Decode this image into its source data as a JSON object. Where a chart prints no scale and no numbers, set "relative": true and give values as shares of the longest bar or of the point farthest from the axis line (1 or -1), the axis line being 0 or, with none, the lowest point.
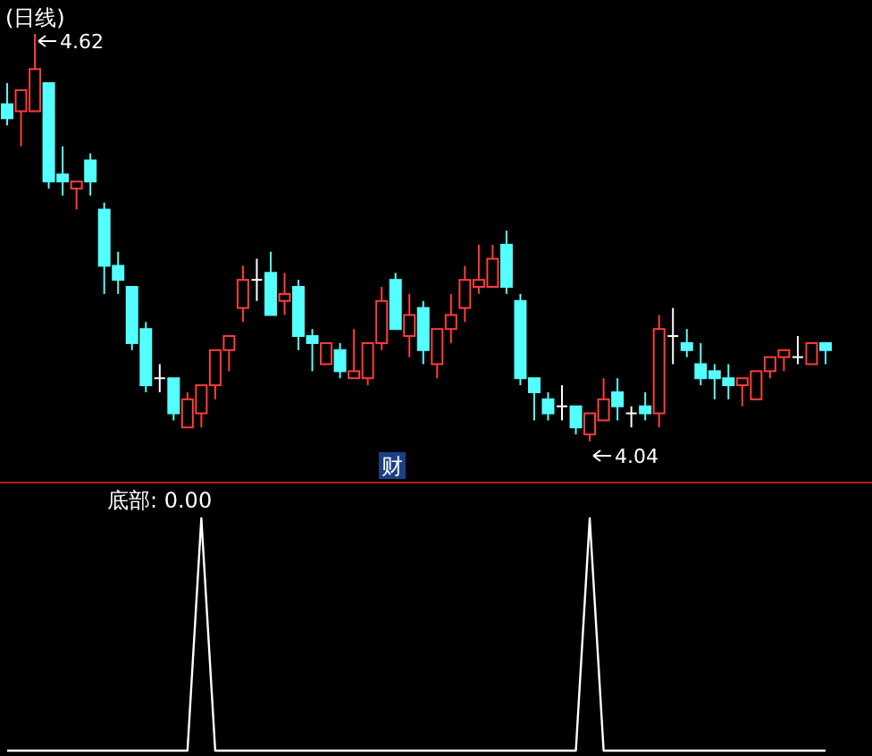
{
  "chart_data": [
    {
      "type": "candlestick",
      "title": "(日线)",
      "categories": [
        null,
        null,
        null,
        null,
        null,
        null,
        null,
        null,
        null,
        null,
        null,
        null,
        null,
        null,
        null,
        null,
        null,
        null,
        null,
        null,
        null,
        null,
        null,
        null,
        null,
        null,
        null,
        null,
        null,
        null,
        null,
        null,
        null,
        null,
        null,
        null,
        null,
        null,
        null,
        null,
        null,
        null,
        null,
        null,
        null,
        null,
        null,
        null,
        null,
        null,
        null,
        null,
        null,
        null,
        null,
        null,
        null,
        null,
        null,
        null
      ],
      "ohlc": [
        [
          4.52,
          4.55,
          4.49,
          4.5
        ],
        [
          4.51,
          4.54,
          4.46,
          4.54
        ],
        [
          4.51,
          4.62,
          4.51,
          4.57
        ],
        [
          4.55,
          4.55,
          4.4,
          4.41
        ],
        [
          4.42,
          4.46,
          4.39,
          4.41
        ],
        [
          4.4,
          4.41,
          4.37,
          4.41
        ],
        [
          4.44,
          4.45,
          4.39,
          4.41
        ],
        [
          4.37,
          4.38,
          4.25,
          4.29
        ],
        [
          4.29,
          4.31,
          4.25,
          4.27
        ],
        [
          4.26,
          4.26,
          4.17,
          4.18
        ],
        [
          4.2,
          4.21,
          4.11,
          4.12
        ],
        [
          4.13,
          4.15,
          4.11,
          4.13
        ],
        [
          4.13,
          4.13,
          4.07,
          4.08
        ],
        [
          4.06,
          4.11,
          4.06,
          4.1
        ],
        [
          4.08,
          4.12,
          4.06,
          4.12
        ],
        [
          4.12,
          4.17,
          4.1,
          4.17
        ],
        [
          4.17,
          4.19,
          4.14,
          4.19
        ],
        [
          4.23,
          4.29,
          4.21,
          4.27
        ],
        [
          4.27,
          4.3,
          4.24,
          4.27
        ],
        [
          4.28,
          4.31,
          4.22,
          4.22
        ],
        [
          4.24,
          4.28,
          4.22,
          4.25
        ],
        [
          4.26,
          4.27,
          4.17,
          4.19
        ],
        [
          4.19,
          4.2,
          4.14,
          4.18
        ],
        [
          4.15,
          4.18,
          4.15,
          4.18
        ],
        [
          4.17,
          4.18,
          4.13,
          4.14
        ],
        [
          4.13,
          4.2,
          4.13,
          4.14
        ],
        [
          4.13,
          4.18,
          4.12,
          4.18
        ],
        [
          4.18,
          4.26,
          4.17,
          4.24
        ],
        [
          4.27,
          4.28,
          4.2,
          4.2
        ],
        [
          4.19,
          4.25,
          4.16,
          4.22
        ],
        [
          4.23,
          4.24,
          4.15,
          4.17
        ],
        [
          4.15,
          4.2,
          4.13,
          4.2
        ],
        [
          4.2,
          4.25,
          4.18,
          4.22
        ],
        [
          4.23,
          4.29,
          4.21,
          4.27
        ],
        [
          4.26,
          4.32,
          4.25,
          4.27
        ],
        [
          4.26,
          4.32,
          4.26,
          4.3
        ],
        [
          4.32,
          4.34,
          4.25,
          4.26
        ],
        [
          4.24,
          4.25,
          4.12,
          4.13
        ],
        [
          4.13,
          4.13,
          4.07,
          4.11
        ],
        [
          4.1,
          4.11,
          4.07,
          4.08
        ],
        [
          4.09,
          4.12,
          4.07,
          4.09
        ],
        [
          4.09,
          4.09,
          4.05,
          4.06
        ],
        [
          4.05,
          4.08,
          4.04,
          4.08
        ],
        [
          4.07,
          4.13,
          4.07,
          4.1
        ],
        [
          4.11,
          4.13,
          4.07,
          4.09
        ],
        [
          4.08,
          4.09,
          4.06,
          4.08
        ],
        [
          4.09,
          4.11,
          4.07,
          4.08
        ],
        [
          4.08,
          4.22,
          4.06,
          4.2
        ],
        [
          4.19,
          4.23,
          4.15,
          4.19
        ],
        [
          4.18,
          4.2,
          4.16,
          4.17
        ],
        [
          4.15,
          4.18,
          4.12,
          4.13
        ],
        [
          4.14,
          4.15,
          4.1,
          4.13
        ],
        [
          4.13,
          4.15,
          4.1,
          4.12
        ],
        [
          4.12,
          4.13,
          4.09,
          4.13
        ],
        [
          4.1,
          4.14,
          4.1,
          4.14
        ],
        [
          4.14,
          4.16,
          4.13,
          4.16
        ],
        [
          4.16,
          4.17,
          4.14,
          4.17
        ],
        [
          4.16,
          4.19,
          4.15,
          4.16
        ],
        [
          4.15,
          4.18,
          4.15,
          4.18
        ],
        [
          4.18,
          4.18,
          4.15,
          4.17
        ]
      ],
      "annotations": [
        "4.62",
        "4.04",
        "财"
      ]
    },
    {
      "type": "line",
      "title": "底部: 0.00",
      "relative": true,
      "color": "#ffffff",
      "categories": [
        null,
        null,
        null,
        null,
        null,
        null,
        null,
        null,
        null,
        null,
        null,
        null,
        null,
        null,
        null,
        null,
        null,
        null,
        null,
        null,
        null,
        null,
        null,
        null,
        null,
        null,
        null,
        null,
        null,
        null,
        null,
        null,
        null,
        null,
        null,
        null,
        null,
        null,
        null,
        null,
        null,
        null,
        null,
        null,
        null,
        null,
        null,
        null,
        null,
        null,
        null,
        null,
        null,
        null,
        null,
        null,
        null,
        null,
        null,
        null
      ],
      "values": [
        0,
        0,
        0,
        0,
        0,
        0,
        0,
        0,
        0,
        0,
        0,
        0,
        0,
        0,
        1,
        0,
        0,
        0,
        0,
        0,
        0,
        0,
        0,
        0,
        0,
        0,
        0,
        0,
        0,
        0,
        0,
        0,
        0,
        0,
        0,
        0,
        0,
        0,
        0,
        0,
        0,
        0,
        1,
        0,
        0,
        0,
        0,
        0,
        0,
        0,
        0,
        0,
        0,
        0,
        0,
        0,
        0,
        0,
        0,
        0
      ]
    }
  ]
}
